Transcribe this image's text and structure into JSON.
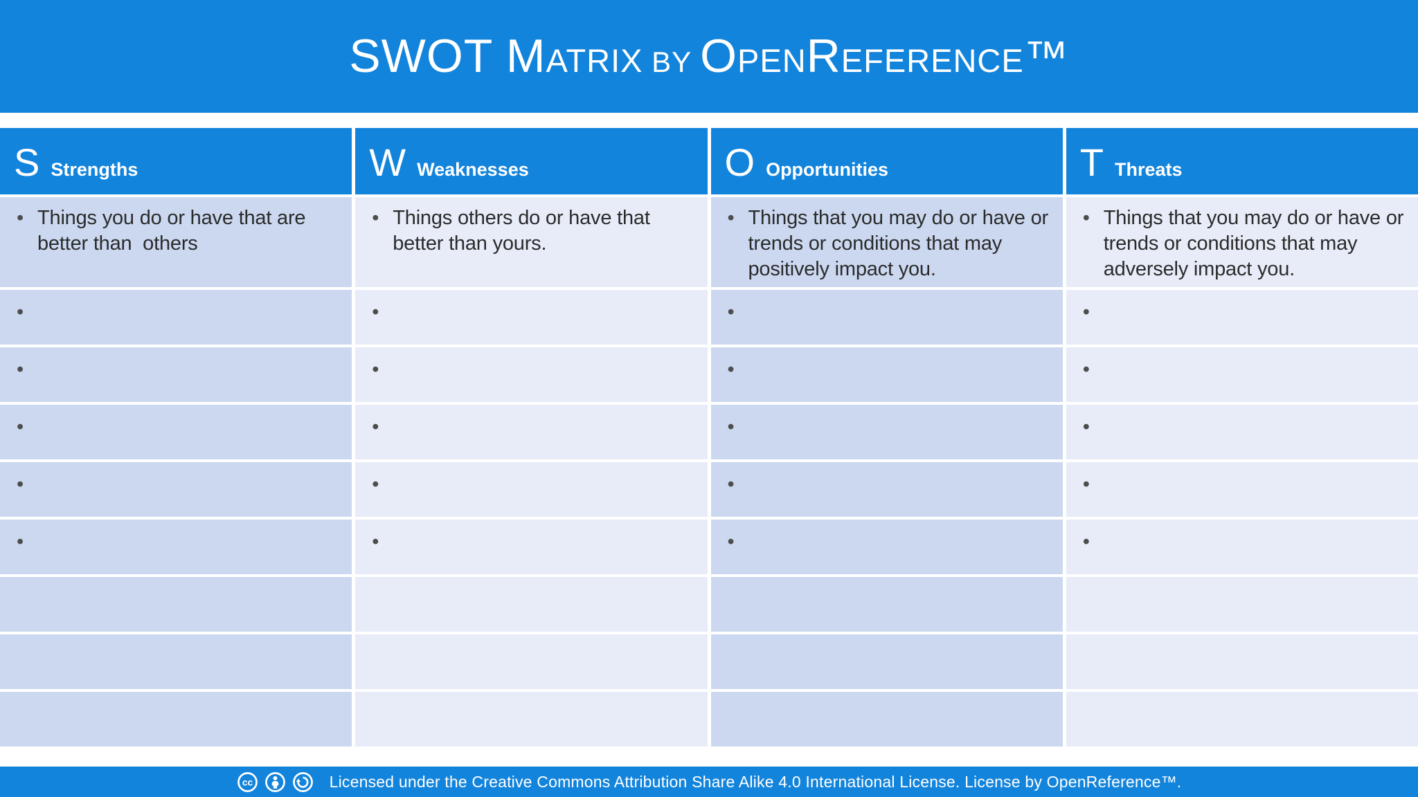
{
  "title": {
    "segments": [
      {
        "text": "SWOT M"
      },
      {
        "text": "ATRIX"
      },
      {
        "text": " BY "
      },
      {
        "text": "O"
      },
      {
        "text": "PEN"
      },
      {
        "text": "R"
      },
      {
        "text": "EFERENCE"
      },
      {
        "text": "™"
      }
    ],
    "full_text": "SWOT Matrix by OpenReference™"
  },
  "colors": {
    "header_blue": "#1384DC",
    "cell_dark": "#CBD8F0",
    "cell_light": "#E7ECF8",
    "bullet": "#4D4D4D",
    "text": "#2B2B2B"
  },
  "table": {
    "bullet_char": "•",
    "empty_rows_with_bullet": 5,
    "empty_rows_without_bullet": 3,
    "columns": [
      {
        "letter": "S",
        "label": "Strengths",
        "description": "Things you do or have that are better than  others"
      },
      {
        "letter": "W",
        "label": "Weaknesses",
        "description": "Things others do or have that better than yours."
      },
      {
        "letter": "O",
        "label": "Opportunities",
        "description": "Things that you may do or have or trends or conditions that may positively impact you."
      },
      {
        "letter": "T",
        "label": "Threats",
        "description": "Things that you may do or have or trends or conditions that may adversely impact you."
      }
    ]
  },
  "footer": {
    "icons": [
      "cc-icon",
      "attribution-icon",
      "share-alike-icon"
    ],
    "text": "Licensed under the Creative Commons Attribution Share Alike 4.0 International License. License by OpenReference™."
  }
}
